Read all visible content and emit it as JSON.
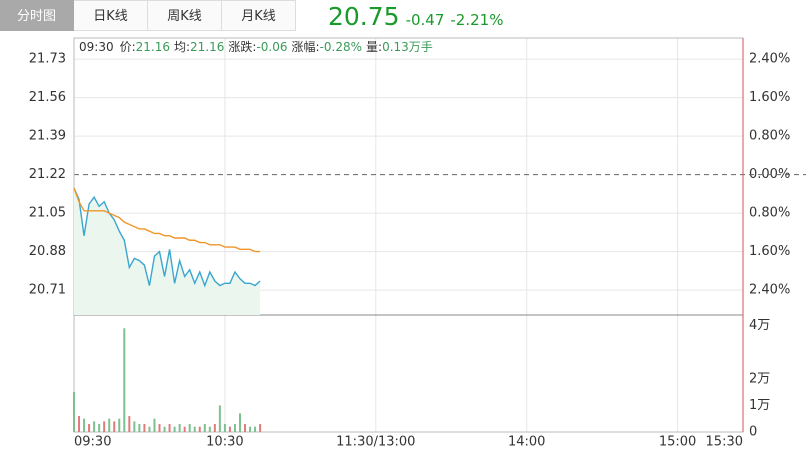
{
  "tabs": [
    "分时图",
    "日K线",
    "周K线",
    "月K线"
  ],
  "quote": {
    "price": "20.75",
    "change": "-0.47",
    "change_pct": "-2.21%"
  },
  "info": {
    "time": "09:30",
    "items": [
      {
        "label": "价:",
        "value": "21.16"
      },
      {
        "label": "均:",
        "value": "21.16"
      },
      {
        "label": "涨跌:",
        "value": "-0.06"
      },
      {
        "label": "涨幅:",
        "value": "-0.28%"
      },
      {
        "label": "量:",
        "value": "0.13万手"
      }
    ]
  },
  "chart_data": {
    "type": "line",
    "x": [
      0,
      2,
      4,
      6,
      8,
      10,
      12,
      14,
      16,
      18,
      20,
      22,
      24,
      26,
      28,
      30,
      32,
      34,
      36,
      38,
      40,
      42,
      44,
      46,
      48,
      50,
      52,
      54,
      56,
      58,
      60,
      62,
      64,
      66,
      68,
      70,
      72,
      74
    ],
    "xlim": [
      0,
      266
    ],
    "xticks": [
      {
        "value": 0,
        "label": "09:30"
      },
      {
        "value": 60,
        "label": "10:30"
      },
      {
        "value": 120,
        "label": "11:30/13:00"
      },
      {
        "value": 180,
        "label": "14:00"
      },
      {
        "value": 240,
        "label": "15:00"
      },
      {
        "value": 266,
        "label": "15:30"
      }
    ],
    "ylim": [
      20.6,
      21.823
    ],
    "yticks": [
      21.73,
      21.56,
      21.39,
      21.22,
      21.05,
      20.88,
      20.71
    ],
    "baseline": 21.22,
    "y2lim": [
      -2.92,
      2.84
    ],
    "y2ticks": [
      {
        "value": 2.4,
        "label": "2.40%"
      },
      {
        "value": 1.6,
        "label": "1.60%"
      },
      {
        "value": 0.8,
        "label": "0.80%"
      },
      {
        "value": 0,
        "label": "0.00%"
      },
      {
        "value": -0.8,
        "label": "0.80%"
      },
      {
        "value": -1.6,
        "label": "1.60%"
      },
      {
        "value": -2.4,
        "label": "2.40%"
      }
    ],
    "grid": true,
    "series": [
      {
        "color": "#3aa6cf",
        "area": true,
        "values": [
          21.16,
          21.11,
          20.95,
          21.09,
          21.12,
          21.08,
          21.1,
          21.05,
          21.02,
          20.97,
          20.93,
          20.81,
          20.85,
          20.84,
          20.82,
          20.73,
          20.86,
          20.88,
          20.77,
          20.89,
          20.74,
          20.84,
          20.77,
          20.8,
          20.74,
          20.79,
          20.73,
          20.79,
          20.75,
          20.73,
          20.74,
          20.74,
          20.79,
          20.76,
          20.74,
          20.74,
          20.73,
          20.75
        ]
      },
      {
        "color": "#f0962a",
        "values": [
          21.16,
          21.1,
          21.06,
          21.06,
          21.06,
          21.06,
          21.06,
          21.05,
          21.04,
          21.03,
          21.01,
          21.0,
          20.99,
          20.98,
          20.98,
          20.97,
          20.96,
          20.96,
          20.95,
          20.95,
          20.94,
          20.94,
          20.94,
          20.93,
          20.93,
          20.92,
          20.92,
          20.91,
          20.91,
          20.91,
          20.9,
          20.9,
          20.9,
          20.89,
          20.89,
          20.89,
          20.88,
          20.88
        ]
      }
    ],
    "volume": {
      "ylim": [
        0,
        4.4
      ],
      "yticks": [
        {
          "value": 4,
          "label": "4万"
        },
        {
          "value": 2,
          "label": "2万"
        },
        {
          "value": 1,
          "label": "1万"
        },
        0
      ],
      "values": [
        1.5,
        0.6,
        0.5,
        0.3,
        0.4,
        0.3,
        0.4,
        0.5,
        0.4,
        0.5,
        3.9,
        0.6,
        0.4,
        0.3,
        0.3,
        0.2,
        0.5,
        0.3,
        0.2,
        0.3,
        0.2,
        0.3,
        0.2,
        0.3,
        0.2,
        0.2,
        0.3,
        0.2,
        0.3,
        1.0,
        0.3,
        0.2,
        0.3,
        0.7,
        0.3,
        0.2,
        0.2,
        0.3
      ],
      "colors": [
        "#7cc08f",
        "#e07b7b",
        "#7cc08f",
        "#e07b7b",
        "#7cc08f",
        "#7cc08f",
        "#e07b7b",
        "#7cc08f",
        "#e07b7b",
        "#7cc08f",
        "#7cc08f",
        "#e07b7b",
        "#7cc08f",
        "#7cc08f",
        "#e07b7b",
        "#7cc08f",
        "#7cc08f",
        "#e07b7b",
        "#7cc08f",
        "#e07b7b",
        "#7cc08f",
        "#7cc08f",
        "#e07b7b",
        "#7cc08f",
        "#7cc08f",
        "#e07b7b",
        "#7cc08f",
        "#7cc08f",
        "#e07b7b",
        "#7cc08f",
        "#7cc08f",
        "#e07b7b",
        "#7cc08f",
        "#7cc08f",
        "#e07b7b",
        "#7cc08f",
        "#7cc08f",
        "#e07b7b"
      ]
    }
  }
}
